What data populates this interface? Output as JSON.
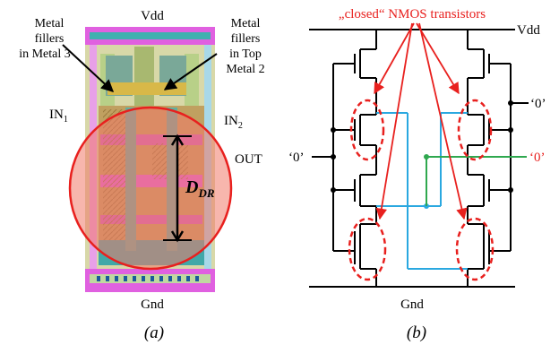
{
  "panel_a": {
    "vdd": "Vdd",
    "gnd": "Gnd",
    "metal3_line1": "Metal",
    "metal3_line2": "fillers",
    "metal3_line3": "in Metal 3",
    "topmetal_line1": "Metal",
    "topmetal_line2": "fillers",
    "topmetal_line3": "in Top",
    "topmetal_line4": "Metal 2",
    "in1": "IN",
    "in1_sub": "1",
    "in2": "IN",
    "in2_sub": "2",
    "out": "OUT",
    "ddr": "D",
    "ddr_sub": "DR",
    "caption": "(a)"
  },
  "panel_b": {
    "title": "„closed“ NMOS transistors",
    "vdd": "Vdd",
    "gnd": "Gnd",
    "zero_right_top": "‘0’",
    "zero_left": "‘0’",
    "zero_green": "‘0’",
    "caption": "(b)"
  },
  "colors": {
    "red": "#e8201e",
    "blue": "#2aa8e0",
    "green": "#2fa84f",
    "circle_fill": "#f07a6a",
    "magenta": "#e040e0",
    "teal": "#2fa8a8",
    "yellow_green": "#c8e060"
  }
}
